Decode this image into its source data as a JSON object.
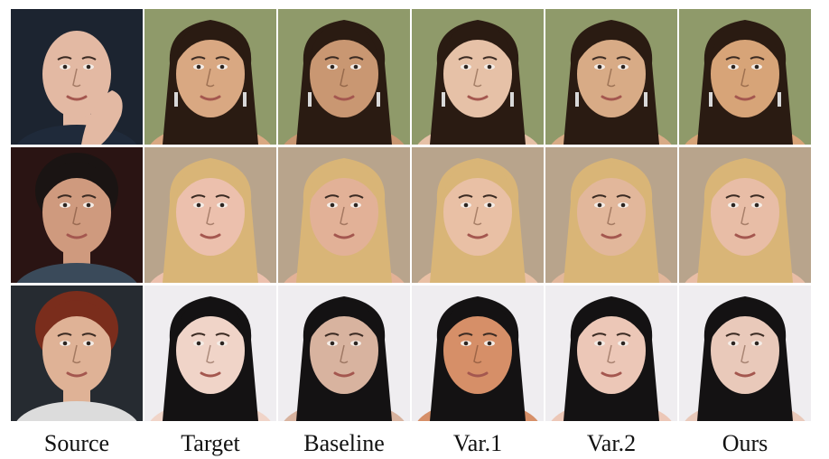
{
  "columns": [
    {
      "key": "source",
      "label": "Source"
    },
    {
      "key": "target",
      "label": "Target"
    },
    {
      "key": "baseline",
      "label": "Baseline"
    },
    {
      "key": "var1",
      "label": "Var.1"
    },
    {
      "key": "var2",
      "label": "Var.2"
    },
    {
      "key": "ours",
      "label": "Ours"
    }
  ],
  "rows": [
    {
      "source": {
        "bg": "#1c2430",
        "skin": "#e3b9a3",
        "hair": "none",
        "clothing": "#1f2a3a",
        "hand": true
      },
      "target": {
        "bg": "#8f9a6a",
        "skin": "#d9a882",
        "hair": "#2a1b12",
        "earrings": true
      },
      "outputs": [
        {
          "skin": "#c99772",
          "hair": "#2a1b12"
        },
        {
          "skin": "#e6c1a7",
          "hair": "#2a1b12"
        },
        {
          "skin": "#d8ab86",
          "hair": "#2a1b12"
        },
        {
          "skin": "#d7a478",
          "hair": "#2a1b12"
        }
      ]
    },
    {
      "source": {
        "bg": "#2a1413",
        "skin": "#cf9a7e",
        "hair": "#1a1413",
        "clothing": "#3a4a5a",
        "hand": false
      },
      "target": {
        "bg": "#b8a48c",
        "skin": "#ecc0ad",
        "hair": "#d9b577",
        "earrings": false
      },
      "outputs": [
        {
          "skin": "#e2b197",
          "hair": "#d9b577"
        },
        {
          "skin": "#e9c0a5",
          "hair": "#d9b577"
        },
        {
          "skin": "#e2b79b",
          "hair": "#d9b577"
        },
        {
          "skin": "#e8bda6",
          "hair": "#d9b577"
        }
      ]
    },
    {
      "source": {
        "bg": "#262b31",
        "skin": "#dfb296",
        "hair": "#7a2d1c",
        "clothing": "#dcdcdc",
        "hand": false
      },
      "target": {
        "bg": "#efedf0",
        "skin": "#f0d4c8",
        "hair": "#141213",
        "earrings": false
      },
      "outputs": [
        {
          "skin": "#d8b39f",
          "hair": "#141213"
        },
        {
          "skin": "#d68f68",
          "hair": "#141213"
        },
        {
          "skin": "#ecc7b7",
          "hair": "#141213"
        },
        {
          "skin": "#e9c9ba",
          "hair": "#141213"
        }
      ]
    }
  ]
}
